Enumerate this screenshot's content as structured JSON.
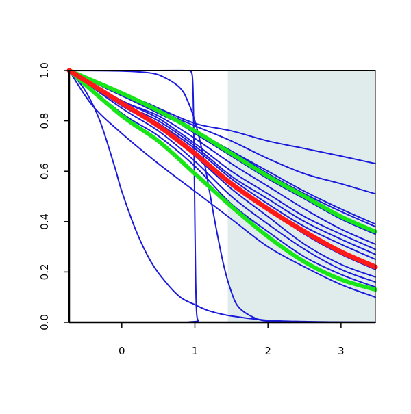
{
  "chart_data": {
    "type": "line",
    "title": "",
    "xlabel": "",
    "ylabel": "",
    "xlim": [
      -0.72,
      3.47
    ],
    "ylim": [
      0,
      1
    ],
    "x_ticks": [
      0,
      1,
      2,
      3
    ],
    "x_tick_labels": [
      "0",
      "1",
      "2",
      "3"
    ],
    "y_ticks": [
      0,
      0.2,
      0.4,
      0.6,
      0.8,
      1.0
    ],
    "y_tick_labels": [
      "0.0",
      "0.2",
      "0.4",
      "0.6",
      "0.8",
      "1.0"
    ],
    "grid": false,
    "shaded_region": {
      "x_from": 1.45,
      "x_to": 3.47,
      "color": "#e0ecec"
    },
    "colors": {
      "series": "#1a1adc",
      "highlight": "#ff1a1a",
      "bound": "#19e619",
      "axis": "#000000"
    },
    "series": [
      {
        "x": [
          -0.72,
          0,
          0.5,
          1,
          1.5,
          2,
          2.5,
          3,
          3.47
        ],
        "y": [
          1,
          0.91,
          0.85,
          0.79,
          0.76,
          0.72,
          0.69,
          0.66,
          0.63
        ],
        "color": "#1a1adc",
        "width": 2
      },
      {
        "x": [
          -0.72,
          0,
          0.5,
          1,
          1.5,
          2,
          2.5,
          3,
          3.47
        ],
        "y": [
          1,
          0.9,
          0.84,
          0.78,
          0.72,
          0.65,
          0.59,
          0.55,
          0.51
        ],
        "color": "#1a1adc",
        "width": 2
      },
      {
        "x": [
          -0.72,
          0,
          0.5,
          1,
          1.5,
          2,
          2.5,
          3,
          3.47
        ],
        "y": [
          1,
          0.91,
          0.85,
          0.76,
          0.68,
          0.6,
          0.52,
          0.45,
          0.39
        ],
        "color": "#1a1adc",
        "width": 2
      },
      {
        "x": [
          -0.72,
          0,
          0.5,
          1,
          1.5,
          2,
          2.5,
          3,
          3.47
        ],
        "y": [
          1,
          0.9,
          0.83,
          0.76,
          0.68,
          0.59,
          0.51,
          0.44,
          0.38
        ],
        "color": "#1a1adc",
        "width": 2
      },
      {
        "x": [
          -0.72,
          0,
          0.5,
          1,
          1.5,
          2,
          2.5,
          3,
          3.47
        ],
        "y": [
          1,
          0.9,
          0.84,
          0.75,
          0.66,
          0.57,
          0.49,
          0.41,
          0.35
        ],
        "color": "#1a1adc",
        "width": 2
      },
      {
        "x": [
          -0.72,
          0,
          0.5,
          1,
          1.5,
          2,
          2.5,
          3,
          3.47
        ],
        "y": [
          1,
          0.88,
          0.82,
          0.73,
          0.63,
          0.54,
          0.45,
          0.37,
          0.31
        ],
        "color": "#1a1adc",
        "width": 2
      },
      {
        "x": [
          -0.72,
          0,
          0.5,
          1,
          1.5,
          2,
          2.5,
          3,
          3.47
        ],
        "y": [
          1,
          0.88,
          0.81,
          0.71,
          0.6,
          0.51,
          0.42,
          0.35,
          0.29
        ],
        "color": "#1a1adc",
        "width": 2
      },
      {
        "x": [
          -0.72,
          0,
          0.5,
          1,
          1.5,
          2,
          2.5,
          3,
          3.47
        ],
        "y": [
          1,
          0.87,
          0.8,
          0.7,
          0.58,
          0.49,
          0.4,
          0.33,
          0.27
        ],
        "color": "#1a1adc",
        "width": 2
      },
      {
        "x": [
          -0.72,
          0,
          0.5,
          1,
          1.5,
          2,
          2.5,
          3,
          3.47
        ],
        "y": [
          1,
          0.87,
          0.79,
          0.69,
          0.57,
          0.47,
          0.38,
          0.31,
          0.25
        ],
        "color": "#1a1adc",
        "width": 2
      },
      {
        "x": [
          -0.72,
          0,
          0.5,
          1,
          1.5,
          2,
          2.5,
          3,
          3.47
        ],
        "y": [
          1,
          0.86,
          0.78,
          0.68,
          0.55,
          0.45,
          0.35,
          0.27,
          0.21
        ],
        "color": "#1a1adc",
        "width": 2
      },
      {
        "x": [
          -0.72,
          0,
          0.5,
          1,
          1.5,
          2,
          2.5,
          3,
          3.47
        ],
        "y": [
          1,
          0.86,
          0.78,
          0.66,
          0.53,
          0.42,
          0.31,
          0.23,
          0.18
        ],
        "color": "#1a1adc",
        "width": 2
      },
      {
        "x": [
          -0.72,
          0,
          0.5,
          1,
          1.5,
          2,
          2.5,
          3,
          3.47
        ],
        "y": [
          1,
          0.85,
          0.76,
          0.64,
          0.5,
          0.39,
          0.29,
          0.21,
          0.16
        ],
        "color": "#1a1adc",
        "width": 2
      },
      {
        "x": [
          -0.72,
          0,
          0.5,
          1,
          1.5,
          2,
          2.5,
          3,
          3.47
        ],
        "y": [
          1,
          0.83,
          0.74,
          0.62,
          0.47,
          0.36,
          0.26,
          0.19,
          0.14
        ],
        "color": "#1a1adc",
        "width": 2
      },
      {
        "x": [
          -0.72,
          -0.4,
          0,
          0.5,
          1,
          1.5,
          2,
          2.5,
          3,
          3.47
        ],
        "y": [
          1,
          0.86,
          0.75,
          0.63,
          0.52,
          0.41,
          0.3,
          0.22,
          0.15,
          0.1
        ],
        "color": "#1a1adc",
        "width": 2
      },
      {
        "x": [
          -0.72,
          -0.5,
          -0.3,
          -0.1,
          0,
          0.2,
          0.4,
          0.6,
          0.8,
          1.0,
          1.2,
          1.5,
          2,
          2.5,
          3,
          3.47
        ],
        "y": [
          1,
          0.92,
          0.8,
          0.62,
          0.52,
          0.36,
          0.24,
          0.16,
          0.1,
          0.07,
          0.045,
          0.025,
          0.008,
          0.003,
          0.001,
          0
        ],
        "color": "#1a1adc",
        "width": 2
      },
      {
        "x": [
          -0.72,
          0,
          0.4,
          0.6,
          0.8,
          0.9,
          1.0,
          1.1,
          1.2,
          1.3,
          1.4,
          1.5,
          1.6,
          1.8,
          2.0,
          2.5,
          3.47
        ],
        "y": [
          1,
          0.998,
          0.99,
          0.97,
          0.93,
          0.88,
          0.8,
          0.68,
          0.52,
          0.36,
          0.22,
          0.12,
          0.06,
          0.02,
          0.005,
          0.001,
          0
        ],
        "color": "#1a1adc",
        "width": 2
      },
      {
        "x": [
          -0.72,
          0.5,
          0.9,
          0.95,
          0.97,
          0.98,
          0.99,
          1.0,
          1.01,
          1.02,
          1.03,
          1.05,
          1.1,
          3.47
        ],
        "y": [
          1,
          1,
          1,
          0.995,
          0.96,
          0.85,
          0.65,
          0.4,
          0.18,
          0.06,
          0.02,
          0.005,
          0,
          0
        ],
        "color": "#1a1adc",
        "width": 2
      },
      {
        "x": [
          -0.72,
          0,
          0.5,
          1,
          1.5,
          2,
          2.5,
          3,
          3.47
        ],
        "y": [
          1,
          0.91,
          0.84,
          0.76,
          0.67,
          0.58,
          0.5,
          0.42,
          0.36
        ],
        "color": "#19e619",
        "width": 6
      },
      {
        "x": [
          -0.72,
          0,
          0.5,
          1,
          1.5,
          2,
          2.5,
          3,
          3.47
        ],
        "y": [
          1,
          0.82,
          0.72,
          0.59,
          0.46,
          0.34,
          0.24,
          0.17,
          0.13
        ],
        "color": "#19e619",
        "width": 6
      },
      {
        "x": [
          -0.72,
          0,
          0.5,
          1,
          1.5,
          2,
          2.5,
          3,
          3.47
        ],
        "y": [
          1,
          0.87,
          0.78,
          0.67,
          0.55,
          0.45,
          0.36,
          0.28,
          0.22
        ],
        "color": "#ff1a1a",
        "width": 7
      }
    ]
  }
}
